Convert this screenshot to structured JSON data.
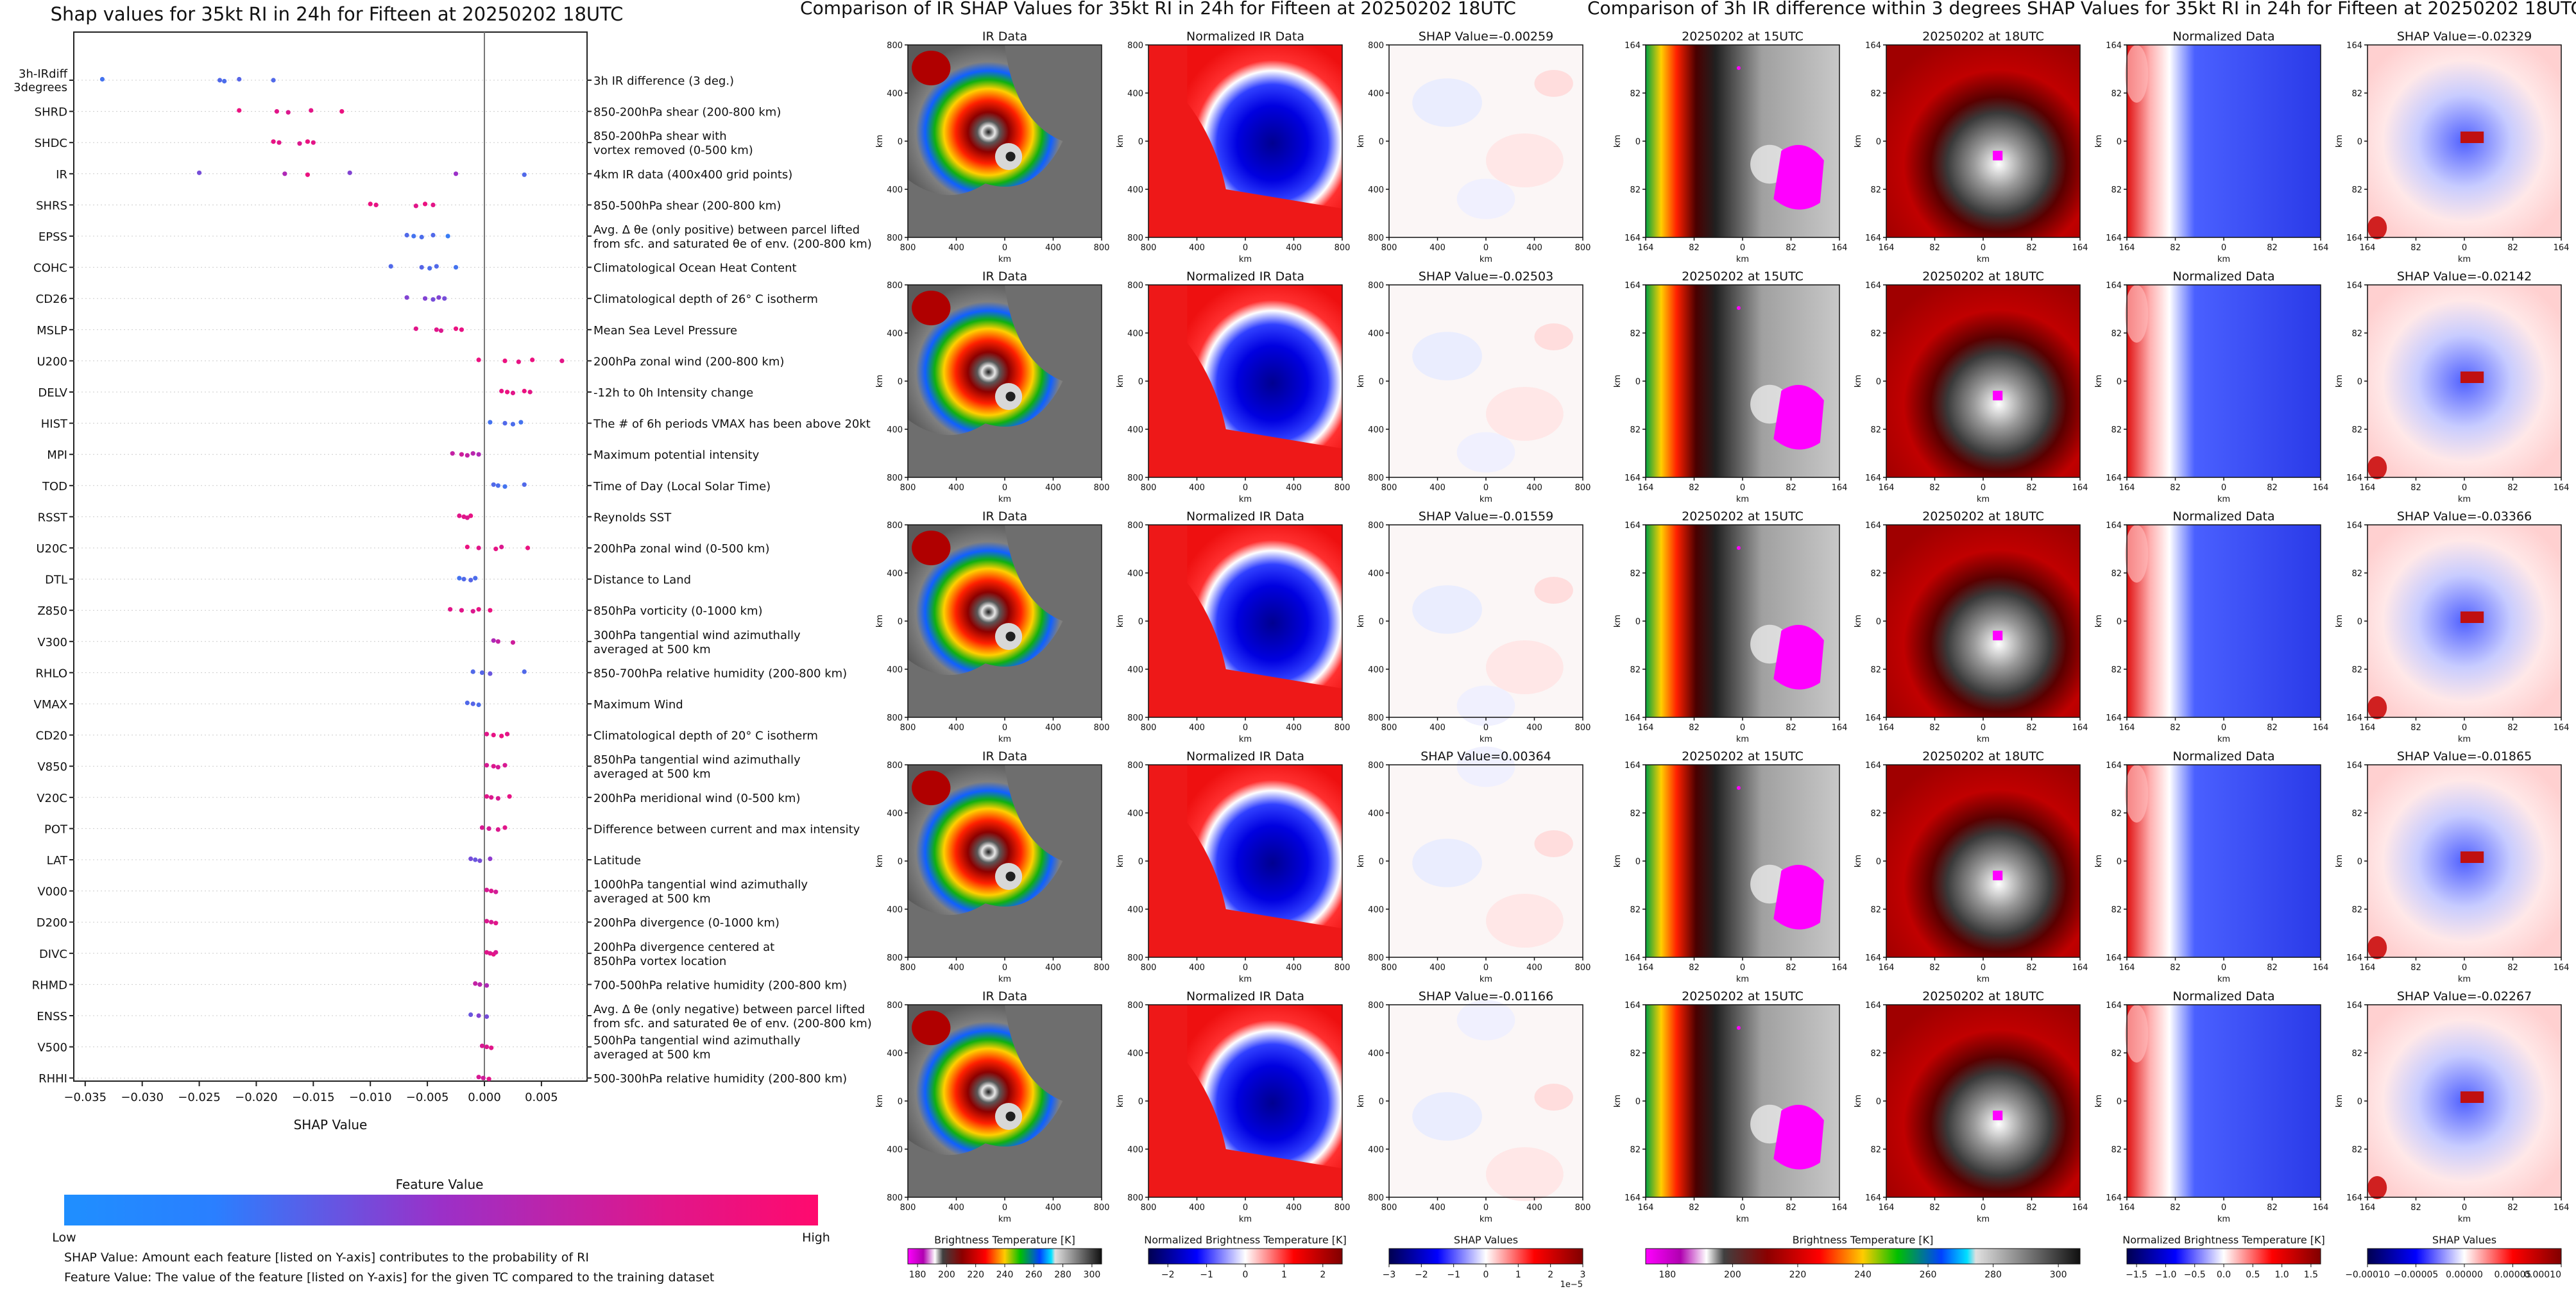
{
  "left_panel": {
    "title": "Shap values for 35kt RI in 24h for Fifteen at 20250202 18UTC",
    "colorbar": {
      "title": "Feature Value",
      "low_label": "Low",
      "high_label": "High",
      "low_color": "#1f8fff",
      "mid_color": "#9b30c8",
      "high_color": "#ff0a6e"
    },
    "footnote_1": "SHAP Value: Amount each feature [listed on Y-axis] contributes to the probability of RI",
    "footnote_2": "Feature Value: The value of the feature [listed on Y-axis] for the given TC compared to the training dataset"
  },
  "chart_data": [
    {
      "type": "scatter",
      "title": "Shap values for 35kt RI in 24h for Fifteen at 20250202 18UTC",
      "xlabel": "SHAP Value",
      "ylabel": "",
      "xlim": [
        -0.036,
        0.009
      ],
      "xticks": [
        -0.035,
        -0.03,
        -0.025,
        -0.02,
        -0.015,
        -0.01,
        -0.005,
        0.0,
        0.005
      ],
      "xtick_labels": [
        "−0.035",
        "−0.030",
        "−0.025",
        "−0.020",
        "−0.015",
        "−0.010",
        "−0.005",
        "0.000",
        "0.005"
      ],
      "features": [
        {
          "code": [
            "3h-IRdiff",
            "3degrees"
          ],
          "desc": [
            "3h IR difference (3 deg.)"
          ],
          "points": [
            [
              -0.0335,
              0.15
            ],
            [
              -0.0232,
              0.2
            ],
            [
              -0.0228,
              0.18
            ],
            [
              -0.0215,
              0.22
            ],
            [
              -0.0185,
              0.2
            ]
          ]
        },
        {
          "code": [
            "SHRD"
          ],
          "desc": [
            "850-200hPa shear (200-800 km)"
          ],
          "points": [
            [
              -0.0215,
              0.9
            ],
            [
              -0.0182,
              0.85
            ],
            [
              -0.0172,
              0.82
            ],
            [
              -0.0152,
              0.86
            ],
            [
              -0.0125,
              0.9
            ]
          ]
        },
        {
          "code": [
            "SHDC"
          ],
          "desc": [
            "850-200hPa shear with",
            "vortex removed (0-500 km)"
          ],
          "points": [
            [
              -0.0185,
              0.88
            ],
            [
              -0.018,
              0.85
            ],
            [
              -0.0162,
              0.82
            ],
            [
              -0.0155,
              0.9
            ],
            [
              -0.015,
              0.86
            ]
          ]
        },
        {
          "code": [
            "IR"
          ],
          "desc": [
            "4km IR data (400x400 grid points)"
          ],
          "points": [
            [
              -0.025,
              0.35
            ],
            [
              -0.0175,
              0.6
            ],
            [
              -0.0155,
              0.9
            ],
            [
              -0.0118,
              0.4
            ],
            [
              -0.0025,
              0.5
            ],
            [
              0.0035,
              0.2
            ]
          ]
        },
        {
          "code": [
            "SHRS"
          ],
          "desc": [
            "850-500hPa shear (200-800 km)"
          ],
          "points": [
            [
              -0.01,
              0.9
            ],
            [
              -0.0095,
              0.88
            ],
            [
              -0.006,
              0.85
            ],
            [
              -0.0052,
              0.9
            ],
            [
              -0.0045,
              0.86
            ]
          ]
        },
        {
          "code": [
            "EPSS"
          ],
          "desc": [
            "Avg. Δ θe (only positive) between parcel lifted",
            "from sfc. and saturated θe of env. (200-800 km)"
          ],
          "points": [
            [
              -0.0068,
              0.2
            ],
            [
              -0.0062,
              0.15
            ],
            [
              -0.0055,
              0.18
            ],
            [
              -0.0045,
              0.2
            ],
            [
              -0.0032,
              0.1
            ]
          ]
        },
        {
          "code": [
            "COHC"
          ],
          "desc": [
            "Climatological Ocean Heat Content"
          ],
          "points": [
            [
              -0.0082,
              0.2
            ],
            [
              -0.0055,
              0.22
            ],
            [
              -0.0048,
              0.18
            ],
            [
              -0.0042,
              0.2
            ],
            [
              -0.0025,
              0.15
            ]
          ]
        },
        {
          "code": [
            "CD26"
          ],
          "desc": [
            "Climatological depth of 26° C isotherm"
          ],
          "points": [
            [
              -0.0068,
              0.4
            ],
            [
              -0.0052,
              0.4
            ],
            [
              -0.0045,
              0.35
            ],
            [
              -0.004,
              0.4
            ],
            [
              -0.0035,
              0.35
            ]
          ]
        },
        {
          "code": [
            "MSLP"
          ],
          "desc": [
            "Mean Sea Level Pressure"
          ],
          "points": [
            [
              -0.006,
              0.85
            ],
            [
              -0.0042,
              0.85
            ],
            [
              -0.0038,
              0.82
            ],
            [
              -0.0025,
              0.9
            ],
            [
              -0.002,
              0.88
            ]
          ]
        },
        {
          "code": [
            "U200"
          ],
          "desc": [
            "200hPa zonal wind (200-800 km)"
          ],
          "points": [
            [
              -0.0005,
              0.9
            ],
            [
              0.0018,
              0.9
            ],
            [
              0.003,
              0.88
            ],
            [
              0.0042,
              0.9
            ],
            [
              0.0068,
              0.86
            ]
          ]
        },
        {
          "code": [
            "DELV"
          ],
          "desc": [
            "-12h to 0h Intensity change"
          ],
          "points": [
            [
              0.0015,
              0.88
            ],
            [
              0.002,
              0.9
            ],
            [
              0.0025,
              0.85
            ],
            [
              0.0035,
              0.9
            ],
            [
              0.004,
              0.86
            ]
          ]
        },
        {
          "code": [
            "HIST"
          ],
          "desc": [
            "The # of 6h periods VMAX has been above 20kt"
          ],
          "points": [
            [
              0.0005,
              0.15
            ],
            [
              0.0018,
              0.2
            ],
            [
              0.0025,
              0.18
            ],
            [
              0.0032,
              0.15
            ]
          ]
        },
        {
          "code": [
            "MPI"
          ],
          "desc": [
            "Maximum potential intensity"
          ],
          "points": [
            [
              -0.0028,
              0.7
            ],
            [
              -0.002,
              0.75
            ],
            [
              -0.0015,
              0.7
            ],
            [
              -0.001,
              0.65
            ],
            [
              -0.0005,
              0.6
            ]
          ]
        },
        {
          "code": [
            "TOD"
          ],
          "desc": [
            "Time of Day (Local Solar Time)"
          ],
          "points": [
            [
              0.0008,
              0.2
            ],
            [
              0.0012,
              0.18
            ],
            [
              0.0018,
              0.15
            ],
            [
              0.0035,
              0.2
            ]
          ]
        },
        {
          "code": [
            "RSST"
          ],
          "desc": [
            "Reynolds SST"
          ],
          "points": [
            [
              -0.0022,
              0.85
            ],
            [
              -0.0018,
              0.85
            ],
            [
              -0.0015,
              0.82
            ],
            [
              -0.0012,
              0.88
            ]
          ]
        },
        {
          "code": [
            "U20C"
          ],
          "desc": [
            "200hPa zonal wind (0-500 km)"
          ],
          "points": [
            [
              -0.0015,
              0.9
            ],
            [
              -0.0005,
              0.85
            ],
            [
              0.001,
              0.88
            ],
            [
              0.0015,
              0.82
            ],
            [
              0.0038,
              0.9
            ]
          ]
        },
        {
          "code": [
            "DTL"
          ],
          "desc": [
            "Distance to Land"
          ],
          "points": [
            [
              -0.0022,
              0.15
            ],
            [
              -0.0018,
              0.2
            ],
            [
              -0.0012,
              0.22
            ],
            [
              -0.0008,
              0.18
            ]
          ]
        },
        {
          "code": [
            "Z850"
          ],
          "desc": [
            "850hPa vorticity (0-1000 km)"
          ],
          "points": [
            [
              -0.003,
              0.85
            ],
            [
              -0.002,
              0.85
            ],
            [
              -0.001,
              0.82
            ],
            [
              -0.0005,
              0.88
            ],
            [
              0.0005,
              0.9
            ]
          ]
        },
        {
          "code": [
            "V300"
          ],
          "desc": [
            "300hPa tangential wind azimuthally",
            "averaged at 500 km"
          ],
          "points": [
            [
              0.0008,
              0.6
            ],
            [
              0.0012,
              0.7
            ],
            [
              0.0025,
              0.75
            ]
          ]
        },
        {
          "code": [
            "RHLO"
          ],
          "desc": [
            "850-700hPa relative humidity (200-800 km)"
          ],
          "points": [
            [
              -0.001,
              0.2
            ],
            [
              -0.0002,
              0.22
            ],
            [
              0.0005,
              0.3
            ],
            [
              0.0035,
              0.2
            ]
          ]
        },
        {
          "code": [
            "VMAX"
          ],
          "desc": [
            "Maximum Wind"
          ],
          "points": [
            [
              -0.0015,
              0.2
            ],
            [
              -0.001,
              0.22
            ],
            [
              -0.0005,
              0.18
            ]
          ]
        },
        {
          "code": [
            "CD20"
          ],
          "desc": [
            "Climatological depth of 20° C isotherm"
          ],
          "points": [
            [
              0.0002,
              0.85
            ],
            [
              0.0008,
              0.88
            ],
            [
              0.0015,
              0.9
            ],
            [
              0.002,
              0.86
            ]
          ]
        },
        {
          "code": [
            "V850"
          ],
          "desc": [
            "850hPa tangential wind azimuthally",
            "averaged at 500 km"
          ],
          "points": [
            [
              0.0002,
              0.8
            ],
            [
              0.0008,
              0.82
            ],
            [
              0.0012,
              0.78
            ],
            [
              0.0018,
              0.8
            ]
          ]
        },
        {
          "code": [
            "V20C"
          ],
          "desc": [
            "200hPa meridional wind (0-500 km)"
          ],
          "points": [
            [
              0.0002,
              0.85
            ],
            [
              0.0006,
              0.82
            ],
            [
              0.0012,
              0.8
            ],
            [
              0.0022,
              0.88
            ]
          ]
        },
        {
          "code": [
            "POT"
          ],
          "desc": [
            "Difference between current and max intensity"
          ],
          "points": [
            [
              -0.0002,
              0.8
            ],
            [
              0.0004,
              0.78
            ],
            [
              0.0012,
              0.82
            ],
            [
              0.0018,
              0.85
            ]
          ]
        },
        {
          "code": [
            "LAT"
          ],
          "desc": [
            "Latitude"
          ],
          "points": [
            [
              -0.0012,
              0.35
            ],
            [
              -0.0008,
              0.3
            ],
            [
              -0.0004,
              0.35
            ],
            [
              0.0005,
              0.45
            ]
          ]
        },
        {
          "code": [
            "V000"
          ],
          "desc": [
            "1000hPa tangential wind azimuthally",
            "averaged at 500 km"
          ],
          "points": [
            [
              0.0002,
              0.8
            ],
            [
              0.0006,
              0.82
            ],
            [
              0.001,
              0.78
            ]
          ]
        },
        {
          "code": [
            "D200"
          ],
          "desc": [
            "200hPa divergence (0-1000 km)"
          ],
          "points": [
            [
              0.0002,
              0.82
            ],
            [
              0.0006,
              0.8
            ],
            [
              0.001,
              0.85
            ]
          ]
        },
        {
          "code": [
            "DIVC"
          ],
          "desc": [
            "200hPa divergence centered at",
            "850hPa vortex location"
          ],
          "points": [
            [
              0.0002,
              0.85
            ],
            [
              0.0005,
              0.82
            ],
            [
              0.0008,
              0.88
            ],
            [
              0.001,
              0.8
            ]
          ]
        },
        {
          "code": [
            "RHMD"
          ],
          "desc": [
            "700-500hPa relative humidity (200-800 km)"
          ],
          "points": [
            [
              -0.0008,
              0.7
            ],
            [
              -0.0004,
              0.65
            ],
            [
              0.0002,
              0.6
            ]
          ]
        },
        {
          "code": [
            "ENSS"
          ],
          "desc": [
            "Avg. Δ θe (only negative) between parcel lifted",
            "from sfc. and saturated θe of env. (200-800 km)"
          ],
          "points": [
            [
              -0.0012,
              0.3
            ],
            [
              -0.0005,
              0.4
            ],
            [
              0.0002,
              0.35
            ]
          ]
        },
        {
          "code": [
            "V500"
          ],
          "desc": [
            "500hPa tangential wind azimuthally",
            "averaged at 500 km"
          ],
          "points": [
            [
              -0.0002,
              0.8
            ],
            [
              0.0002,
              0.82
            ],
            [
              0.0006,
              0.85
            ]
          ]
        },
        {
          "code": [
            "RHHI"
          ],
          "desc": [
            "500-300hPa relative humidity (200-800 km)"
          ],
          "points": [
            [
              -0.0005,
              0.8
            ],
            [
              -0.0001,
              0.75
            ],
            [
              0.0004,
              0.85
            ]
          ]
        }
      ]
    }
  ],
  "middle_block": {
    "title": "Comparison of IR SHAP Values for 35kt RI in 24h for Fifteen at 20250202 18UTC",
    "col_titles": [
      "IR Data",
      "Normalized IR Data"
    ],
    "shap_titles": [
      "SHAP Value=-0.00259",
      "SHAP Value=-0.02503",
      "SHAP Value=-0.01559",
      "SHAP Value=0.00364",
      "SHAP Value=-0.01166"
    ],
    "axis_unit": "km",
    "yticks": [
      "800",
      "400",
      "0",
      "400",
      "800"
    ],
    "xticks": [
      "800",
      "400",
      "0",
      "400",
      "800"
    ],
    "colorbars": [
      {
        "title": "Brightness Temperature [K]",
        "ticks": [
          "180",
          "200",
          "220",
          "240",
          "260",
          "280",
          "300"
        ]
      },
      {
        "title": "Normalized Brightness Temperature [K]",
        "ticks": [
          "−2",
          "−1",
          "0",
          "1",
          "2"
        ]
      },
      {
        "title": "SHAP Values",
        "ticks": [
          "−3",
          "−2",
          "−1",
          "0",
          "1",
          "2",
          "3"
        ],
        "offset": "1e−5"
      }
    ]
  },
  "right_block": {
    "title": "Comparison of 3h IR difference within 3 degrees SHAP Values for 35kt RI in 24h for Fifteen at 20250202 18UTC",
    "col_titles": [
      "20250202 at 15UTC",
      "20250202 at 18UTC",
      "Normalized Data"
    ],
    "shap_titles": [
      "SHAP Value=-0.02329",
      "SHAP Value=-0.02142",
      "SHAP Value=-0.03366",
      "SHAP Value=-0.01865",
      "SHAP Value=-0.02267"
    ],
    "axis_unit": "km",
    "yticks": [
      "164",
      "82",
      "0",
      "82",
      "164"
    ],
    "xticks": [
      "164",
      "82",
      "0",
      "82",
      "164"
    ],
    "colorbars": [
      {
        "title": "Brightness Temperature [K]",
        "ticks": [
          "180",
          "200",
          "220",
          "240",
          "260",
          "280",
          "300"
        ]
      },
      {
        "title": "Normalized Brightness Temperature [K]",
        "ticks": [
          "−1.5",
          "−1.0",
          "−0.5",
          "0.0",
          "0.5",
          "1.0",
          "1.5"
        ]
      },
      {
        "title": "SHAP Values",
        "ticks": [
          "−0.00010",
          "−0.00005",
          "0.00000",
          "0.00005",
          "0.00010"
        ]
      }
    ]
  }
}
